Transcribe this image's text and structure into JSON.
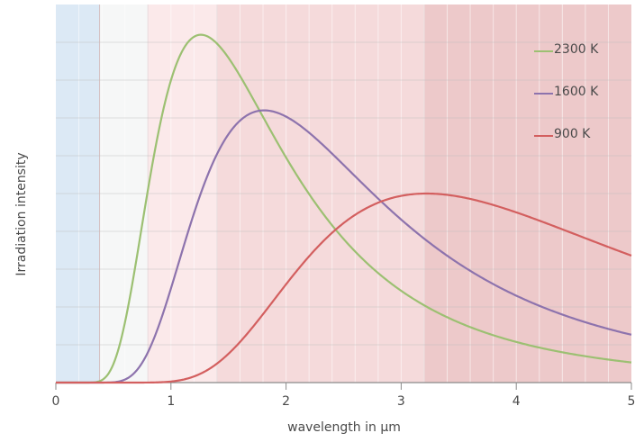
{
  "chart_data": {
    "type": "line",
    "title": "",
    "xlabel": "wavelength in µm",
    "ylabel": "Irradiation intensity",
    "xlim": [
      0,
      5
    ],
    "ylim": [
      0,
      1
    ],
    "xticks": [
      0,
      1,
      2,
      3,
      4,
      5
    ],
    "grid": true,
    "legend_position": "top-right",
    "bands": [
      {
        "from": 0,
        "to": 0.38,
        "color": "#dce9f5"
      },
      {
        "from": 0.38,
        "to": 0.8,
        "color": "#f6f7f7"
      },
      {
        "from": 0.8,
        "to": 1.4,
        "color": "#fbe9ea"
      },
      {
        "from": 1.4,
        "to": 3.2,
        "color": "#f5dadb"
      },
      {
        "from": 3.2,
        "to": 5,
        "color": "#edc9ca"
      }
    ],
    "series": [
      {
        "name": "2300 K",
        "temperature": 2300,
        "color": "#9cc072",
        "peak_x": 1.26,
        "peak_y": 0.92
      },
      {
        "name": "1600 K",
        "temperature": 1600,
        "color": "#8d73ad",
        "peak_x": 1.81,
        "peak_y": 0.72
      },
      {
        "name": "900 K",
        "temperature": 900,
        "color": "#d35f5f",
        "peak_x": 3.22,
        "peak_y": 0.5
      }
    ]
  }
}
